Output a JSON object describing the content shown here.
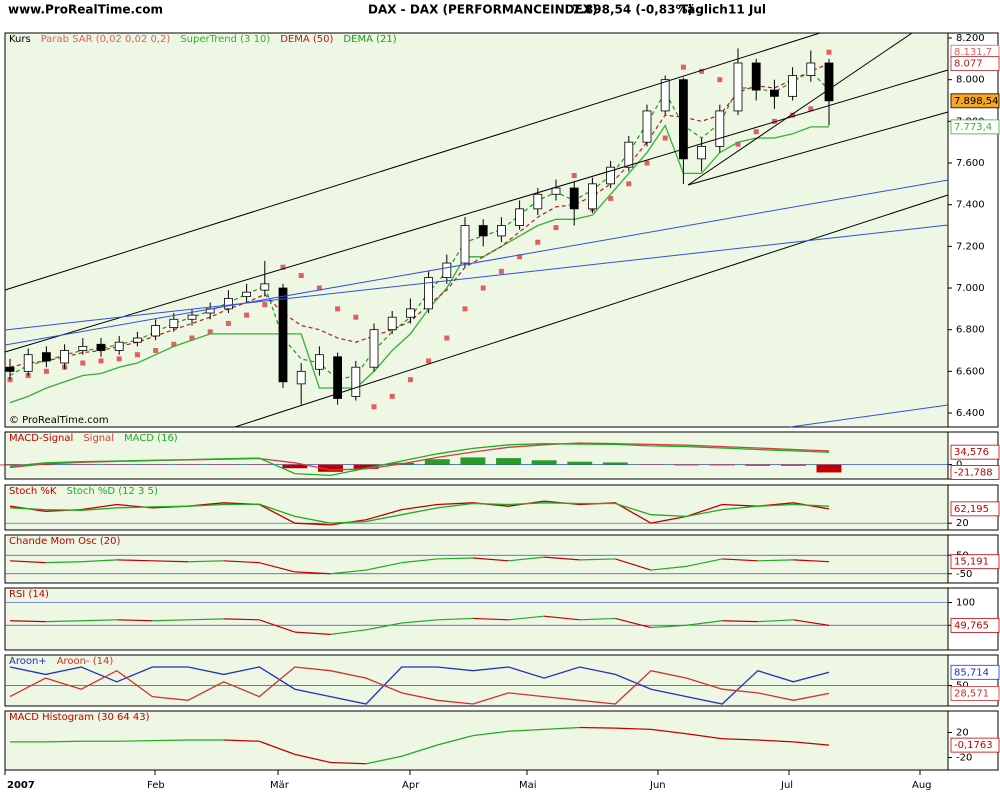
{
  "header": {
    "site": "www.ProRealTime.com",
    "title": "DAX - DAX (PERFORMANCEINDEX)",
    "price": "7.898,54 (-0,83%)",
    "period": "Täglich",
    "date": "11 Jul"
  },
  "months": [
    "2007",
    "Feb",
    "Mär",
    "Apr",
    "Mai",
    "Jun",
    "Jul",
    "Aug"
  ],
  "chart_data": [
    {
      "type": "candlestick",
      "label": "Kurs",
      "watermark": "© ProRealTime.com",
      "up_color": "#ffffff",
      "down_color": "#000000",
      "grid": false,
      "open": [
        6620,
        6600,
        6690,
        6640,
        6700,
        6730,
        6700,
        6740,
        6770,
        6810,
        6850,
        6880,
        6900,
        6960,
        6990,
        7000,
        6540,
        6610,
        6670,
        6480,
        6620,
        6800,
        6860,
        6900,
        7050,
        7120,
        7300,
        7250,
        7300,
        7380,
        7450,
        7480,
        7380,
        7500,
        7580,
        7700,
        7850,
        8000,
        7620,
        7680,
        7850,
        8080,
        7950,
        7920,
        8020,
        8080
      ],
      "high": [
        6660,
        6710,
        6720,
        6730,
        6760,
        6760,
        6770,
        6790,
        6850,
        6880,
        6900,
        6930,
        6990,
        7020,
        7130,
        7020,
        6640,
        6720,
        6690,
        6650,
        6830,
        6890,
        6950,
        7080,
        7160,
        7340,
        7330,
        7340,
        7420,
        7480,
        7520,
        7510,
        7530,
        7610,
        7730,
        7880,
        8020,
        8010,
        7720,
        7880,
        8150,
        8100,
        8000,
        8060,
        8140,
        8100
      ],
      "low": [
        6560,
        6580,
        6620,
        6610,
        6680,
        6670,
        6680,
        6720,
        6750,
        6790,
        6820,
        6850,
        6880,
        6930,
        6960,
        6520,
        6440,
        6580,
        6440,
        6460,
        6600,
        6780,
        6830,
        6880,
        7020,
        7100,
        7200,
        7220,
        7280,
        7350,
        7420,
        7300,
        7360,
        7480,
        7560,
        7680,
        7830,
        7500,
        7560,
        7650,
        7830,
        7900,
        7860,
        7900,
        7990,
        7780
      ],
      "close": [
        6600,
        6680,
        6650,
        6700,
        6720,
        6700,
        6740,
        6760,
        6820,
        6850,
        6870,
        6900,
        6950,
        6980,
        7020,
        6550,
        6600,
        6680,
        6470,
        6620,
        6800,
        6860,
        6900,
        7050,
        7120,
        7300,
        7250,
        7300,
        7380,
        7450,
        7480,
        7380,
        7500,
        7580,
        7700,
        7850,
        8000,
        7620,
        7680,
        7850,
        8080,
        7950,
        7920,
        8020,
        8080,
        7898.54
      ],
      "series": [
        {
          "name": "Parab SAR (0,02 0,02 0,2)",
          "color": "#e06060",
          "style": "dots",
          "values": [
            6560,
            6580,
            6600,
            6620,
            6640,
            6650,
            6660,
            6680,
            6700,
            6730,
            6760,
            6790,
            6830,
            6870,
            6920,
            7100,
            7060,
            7000,
            6900,
            6860,
            6430,
            6480,
            6560,
            6650,
            6760,
            6900,
            7000,
            7080,
            7150,
            7220,
            7290,
            7540,
            7380,
            7430,
            7500,
            7600,
            7720,
            8060,
            8040,
            8000,
            7690,
            7750,
            7800,
            7830,
            7860,
            8131.7
          ]
        },
        {
          "name": "SuperTrend (3 10)",
          "color": "#33b233",
          "style": "line",
          "values": [
            6450,
            6480,
            6520,
            6550,
            6580,
            6590,
            6620,
            6640,
            6680,
            6720,
            6750,
            6780,
            6780,
            6780,
            6780,
            6780,
            6780,
            6520,
            6520,
            6520,
            6600,
            6700,
            6780,
            6900,
            7000,
            7150,
            7150,
            7200,
            7250,
            7300,
            7330,
            7330,
            7350,
            7450,
            7550,
            7650,
            7780,
            7550,
            7550,
            7650,
            7700,
            7720,
            7720,
            7740,
            7773.4,
            7773.4
          ]
        },
        {
          "name": "DEMA (50)",
          "color": "#b02020",
          "style": "dashed",
          "values": [
            6620,
            6640,
            6650,
            6670,
            6690,
            6700,
            6720,
            6740,
            6770,
            6800,
            6830,
            6860,
            6900,
            6930,
            6970,
            6880,
            6820,
            6800,
            6760,
            6740,
            6770,
            6800,
            6840,
            6920,
            6990,
            7100,
            7150,
            7200,
            7270,
            7340,
            7390,
            7400,
            7440,
            7500,
            7590,
            7700,
            7830,
            7820,
            7800,
            7830,
            7940,
            7970,
            7960,
            8000,
            8040,
            8077
          ]
        },
        {
          "name": "DEMA (21)",
          "color": "#1a9a1a",
          "style": "dashed",
          "values": [
            6580,
            6630,
            6650,
            6680,
            6700,
            6710,
            6730,
            6750,
            6790,
            6830,
            6860,
            6890,
            6930,
            6970,
            7010,
            6760,
            6660,
            6640,
            6560,
            6580,
            6700,
            6790,
            6860,
            6980,
            7080,
            7220,
            7250,
            7280,
            7350,
            7420,
            7460,
            7420,
            7470,
            7540,
            7650,
            7790,
            7940,
            7780,
            7720,
            7790,
            7960,
            7960,
            7940,
            7990,
            8040,
            7950
          ]
        }
      ],
      "ylim": [
        6333,
        8224
      ],
      "yticks": [
        {
          "value": 6400,
          "label": "6.400"
        },
        {
          "value": 6600,
          "label": "6.600"
        },
        {
          "value": 6800,
          "label": "6.800"
        },
        {
          "value": 7000,
          "label": "7.000"
        },
        {
          "value": 7200,
          "label": "7.200"
        },
        {
          "value": 7400,
          "label": "7.400"
        },
        {
          "value": 7600,
          "label": "7.600"
        },
        {
          "value": 7800,
          "label": "7.800"
        },
        {
          "value": 8000,
          "label": "8.000"
        },
        {
          "value": 8200,
          "label": "8.200"
        }
      ],
      "tags": [
        {
          "value": 8131.7,
          "label": "8.131,7",
          "color": "#e06060"
        },
        {
          "value": 8077,
          "label": "8.077",
          "color": "#b02020"
        },
        {
          "value": 7898.54,
          "label": "7.898,54",
          "color": "#000000",
          "fill": "#f5a623"
        },
        {
          "value": 7773.4,
          "label": "7.773,4",
          "color": "#33b233"
        }
      ]
    },
    {
      "type": "line",
      "grid": true,
      "ylim": [
        -40,
        60
      ],
      "yticks": [
        0
      ],
      "series": [
        {
          "name": "MACD-Signal",
          "color": "#c00000",
          "positive_color": "#2a9a2a",
          "style": "bars",
          "values": [
            -2,
            -1,
            -1,
            -1,
            -1,
            -1,
            -1,
            -1,
            -10,
            -20,
            -12,
            5,
            15,
            20,
            18,
            12,
            8,
            6,
            -1,
            -2,
            -2,
            -3,
            -3,
            -21.788
          ]
        },
        {
          "name": "Signal",
          "color": "#d04040",
          "style": "line",
          "values": [
            -8,
            2,
            6,
            9,
            11,
            13,
            15,
            17,
            5,
            -15,
            -12,
            2,
            20,
            35,
            48,
            55,
            60,
            58,
            56,
            54,
            50,
            46,
            42,
            38
          ]
        },
        {
          "name": "MACD (16)",
          "color": "#22aa22",
          "style": "line",
          "values": [
            -5,
            5,
            8,
            10,
            12,
            14,
            16,
            18,
            -25,
            -30,
            -10,
            10,
            30,
            45,
            55,
            58,
            57,
            56,
            52,
            50,
            46,
            42,
            38,
            34.576
          ]
        }
      ],
      "tags": [
        {
          "value": 34.576,
          "label": "34,576",
          "color": "#c00000"
        },
        {
          "value": -21.788,
          "label": "-21,788",
          "color": "#c00000"
        }
      ]
    },
    {
      "type": "line",
      "grid": true,
      "ylim": [
        0,
        100
      ],
      "yticks": [
        20
      ],
      "series": [
        {
          "name": "Stoch %K",
          "color": "#c00000",
          "style": "line",
          "values": [
            70,
            55,
            60,
            75,
            65,
            70,
            80,
            75,
            20,
            15,
            30,
            60,
            75,
            80,
            70,
            85,
            75,
            80,
            20,
            40,
            75,
            70,
            80,
            62.195
          ]
        },
        {
          "name": "Stoch %D (12 3 5)",
          "color": "#22aa22",
          "style": "line",
          "values": [
            65,
            60,
            58,
            65,
            68,
            70,
            75,
            76,
            40,
            20,
            25,
            45,
            65,
            78,
            75,
            80,
            78,
            78,
            45,
            40,
            60,
            70,
            75,
            70
          ]
        }
      ],
      "tags": [
        {
          "value": 62.195,
          "label": "62,195",
          "color": "#c00000"
        }
      ]
    },
    {
      "type": "line",
      "grid": true,
      "ylim": [
        -100,
        100
      ],
      "yticks": [
        50,
        -50
      ],
      "series": [
        {
          "name": "Chande Mom Osc (20)",
          "color": "#c00000",
          "rising_color": "#22aa22",
          "style": "line",
          "values": [
            20,
            10,
            15,
            25,
            20,
            15,
            20,
            10,
            -40,
            -50,
            -30,
            10,
            30,
            35,
            20,
            40,
            25,
            30,
            -30,
            -10,
            30,
            20,
            25,
            15.191
          ]
        }
      ],
      "tags": [
        {
          "value": 15.191,
          "label": "15,191",
          "color": "#c00000"
        }
      ]
    },
    {
      "type": "line",
      "grid": true,
      "ylim": [
        0,
        110
      ],
      "yticks": [
        100,
        50
      ],
      "series": [
        {
          "name": "RSI (14)",
          "color": "#c00000",
          "rising_color": "#22aa22",
          "style": "line",
          "values": [
            60,
            58,
            60,
            62,
            60,
            62,
            64,
            62,
            35,
            30,
            40,
            55,
            62,
            65,
            62,
            70,
            62,
            65,
            45,
            50,
            60,
            58,
            62,
            49.765
          ]
        }
      ],
      "tags": [
        {
          "value": 49.765,
          "label": "49,765",
          "color": "#c00000"
        }
      ]
    },
    {
      "type": "line",
      "grid": true,
      "ylim": [
        0,
        100
      ],
      "yticks": [
        50
      ],
      "series": [
        {
          "name": "Aroon+",
          "color": "#2030c0",
          "style": "line",
          "values": [
            100,
            80,
            100,
            60,
            100,
            100,
            80,
            100,
            40,
            20,
            0,
            100,
            100,
            90,
            100,
            70,
            100,
            80,
            40,
            20,
            0,
            90,
            60,
            85.714
          ]
        },
        {
          "name": "Aroon- (14)",
          "color": "#d03030",
          "style": "line",
          "values": [
            20,
            70,
            40,
            90,
            20,
            10,
            60,
            20,
            100,
            90,
            70,
            30,
            10,
            0,
            30,
            20,
            10,
            0,
            90,
            70,
            40,
            30,
            10,
            28.571
          ]
        }
      ],
      "tags": [
        {
          "value": 85.714,
          "label": "85,714",
          "color": "#2030c0"
        },
        {
          "value": 28.571,
          "label": "28,571",
          "color": "#d03030"
        }
      ]
    },
    {
      "type": "line",
      "grid": false,
      "ylim": [
        -40,
        40
      ],
      "yticks": [
        20,
        -20
      ],
      "series": [
        {
          "name": "MACD Histogram (30 64 43)",
          "color": "#c00000",
          "rising_color": "#22aa22",
          "style": "line",
          "values": [
            5,
            5,
            6,
            6,
            7,
            8,
            8,
            6,
            -15,
            -28,
            -30,
            -18,
            0,
            15,
            22,
            25,
            28,
            27,
            25,
            18,
            10,
            8,
            5,
            -0.1763
          ]
        }
      ],
      "tags": [
        {
          "value": -0.1763,
          "label": "-0,1763",
          "color": "#c00000"
        }
      ]
    }
  ]
}
